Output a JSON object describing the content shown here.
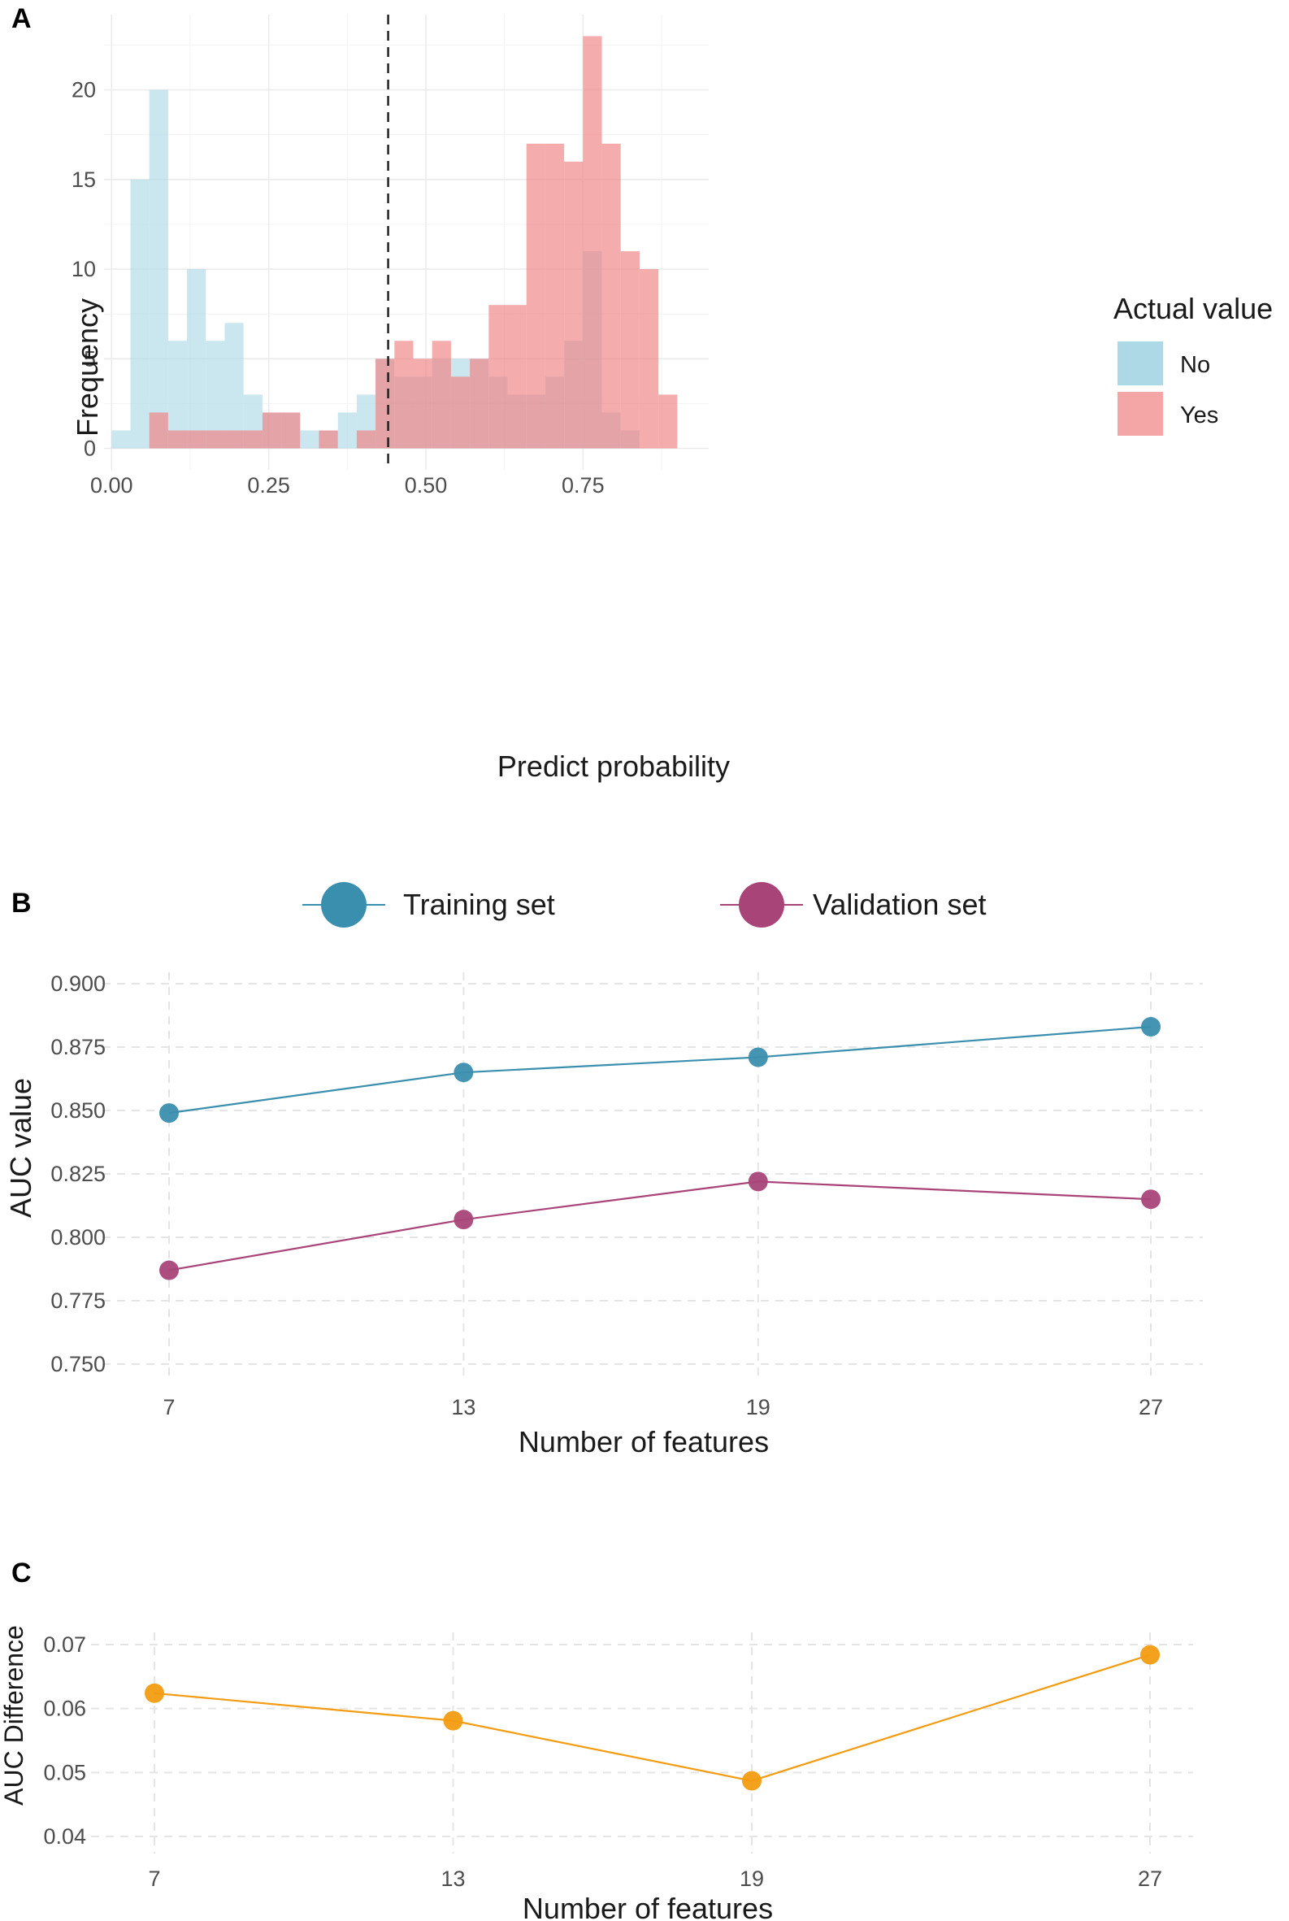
{
  "chart_data": [
    {
      "panel": "A",
      "type": "histogram",
      "xlabel": "Predict probability",
      "ylabel": "Frequency",
      "xlim": [
        -0.012,
        0.95
      ],
      "ylim": [
        -1.2,
        24.2
      ],
      "xticks": [
        0,
        0.25,
        0.5,
        0.75
      ],
      "xtick_labels": [
        "0.00",
        "0.25",
        "0.50",
        "0.75"
      ],
      "yticks": [
        0,
        5,
        10,
        15,
        20
      ],
      "ytick_labels": [
        "0",
        "5",
        "10",
        "15",
        "20"
      ],
      "bin_width": 0.03,
      "threshold": 0.44,
      "legend_title": "Actual value",
      "series": [
        {
          "name": "No",
          "color": "#add8e6",
          "bins": [
            [
              0.015,
              1
            ],
            [
              0.045,
              15
            ],
            [
              0.075,
              20
            ],
            [
              0.105,
              6
            ],
            [
              0.135,
              10
            ],
            [
              0.165,
              6
            ],
            [
              0.195,
              7
            ],
            [
              0.225,
              3
            ],
            [
              0.255,
              2
            ],
            [
              0.285,
              2
            ],
            [
              0.315,
              1
            ],
            [
              0.345,
              1
            ],
            [
              0.375,
              2
            ],
            [
              0.405,
              3
            ],
            [
              0.435,
              5
            ],
            [
              0.465,
              4
            ],
            [
              0.495,
              4
            ],
            [
              0.525,
              5
            ],
            [
              0.555,
              5
            ],
            [
              0.585,
              5
            ],
            [
              0.615,
              4
            ],
            [
              0.645,
              3
            ],
            [
              0.675,
              3
            ],
            [
              0.705,
              4
            ],
            [
              0.735,
              6
            ],
            [
              0.765,
              11
            ],
            [
              0.795,
              2
            ],
            [
              0.825,
              1
            ]
          ]
        },
        {
          "name": "Yes",
          "color": "#f08080",
          "bins": [
            [
              0.075,
              2
            ],
            [
              0.105,
              1
            ],
            [
              0.135,
              1
            ],
            [
              0.165,
              1
            ],
            [
              0.195,
              1
            ],
            [
              0.225,
              1
            ],
            [
              0.255,
              2
            ],
            [
              0.285,
              2
            ],
            [
              0.315,
              0
            ],
            [
              0.345,
              1
            ],
            [
              0.375,
              0
            ],
            [
              0.405,
              1
            ],
            [
              0.435,
              5
            ],
            [
              0.465,
              6
            ],
            [
              0.495,
              5
            ],
            [
              0.525,
              6
            ],
            [
              0.555,
              4
            ],
            [
              0.585,
              5
            ],
            [
              0.615,
              8
            ],
            [
              0.645,
              8
            ],
            [
              0.675,
              17
            ],
            [
              0.705,
              17
            ],
            [
              0.735,
              16
            ],
            [
              0.765,
              23
            ],
            [
              0.795,
              17
            ],
            [
              0.825,
              11
            ],
            [
              0.855,
              10
            ],
            [
              0.885,
              3
            ]
          ]
        }
      ]
    },
    {
      "panel": "B",
      "type": "line",
      "xlabel": "Number of features",
      "ylabel": "AUC value",
      "x": [
        7,
        13,
        19,
        27
      ],
      "xtick_labels": [
        "7",
        "13",
        "19",
        "27"
      ],
      "ylim": [
        0.75,
        0.9
      ],
      "yticks": [
        0.75,
        0.775,
        0.8,
        0.825,
        0.85,
        0.875,
        0.9
      ],
      "ytick_labels": [
        "0.750",
        "0.775",
        "0.800",
        "0.825",
        "0.850",
        "0.875",
        "0.900"
      ],
      "series": [
        {
          "name": "Training set",
          "color": "#3b8fae",
          "values": [
            0.849,
            0.865,
            0.871,
            0.883
          ]
        },
        {
          "name": "Validation set",
          "color": "#a94479",
          "values": [
            0.787,
            0.807,
            0.822,
            0.815
          ]
        }
      ]
    },
    {
      "panel": "C",
      "type": "line",
      "xlabel": "Number of features",
      "ylabel": "AUC Difference",
      "x": [
        7,
        13,
        19,
        27
      ],
      "xtick_labels": [
        "7",
        "13",
        "19",
        "27"
      ],
      "ylim": [
        0.04,
        0.07
      ],
      "yticks": [
        0.04,
        0.05,
        0.06,
        0.07
      ],
      "ytick_labels": [
        "0.04",
        "0.05",
        "0.06",
        "0.07"
      ],
      "series": [
        {
          "name": "AUC Difference",
          "color": "#f39c12",
          "values": [
            0.0624,
            0.0581,
            0.0487,
            0.0684
          ]
        }
      ]
    }
  ]
}
